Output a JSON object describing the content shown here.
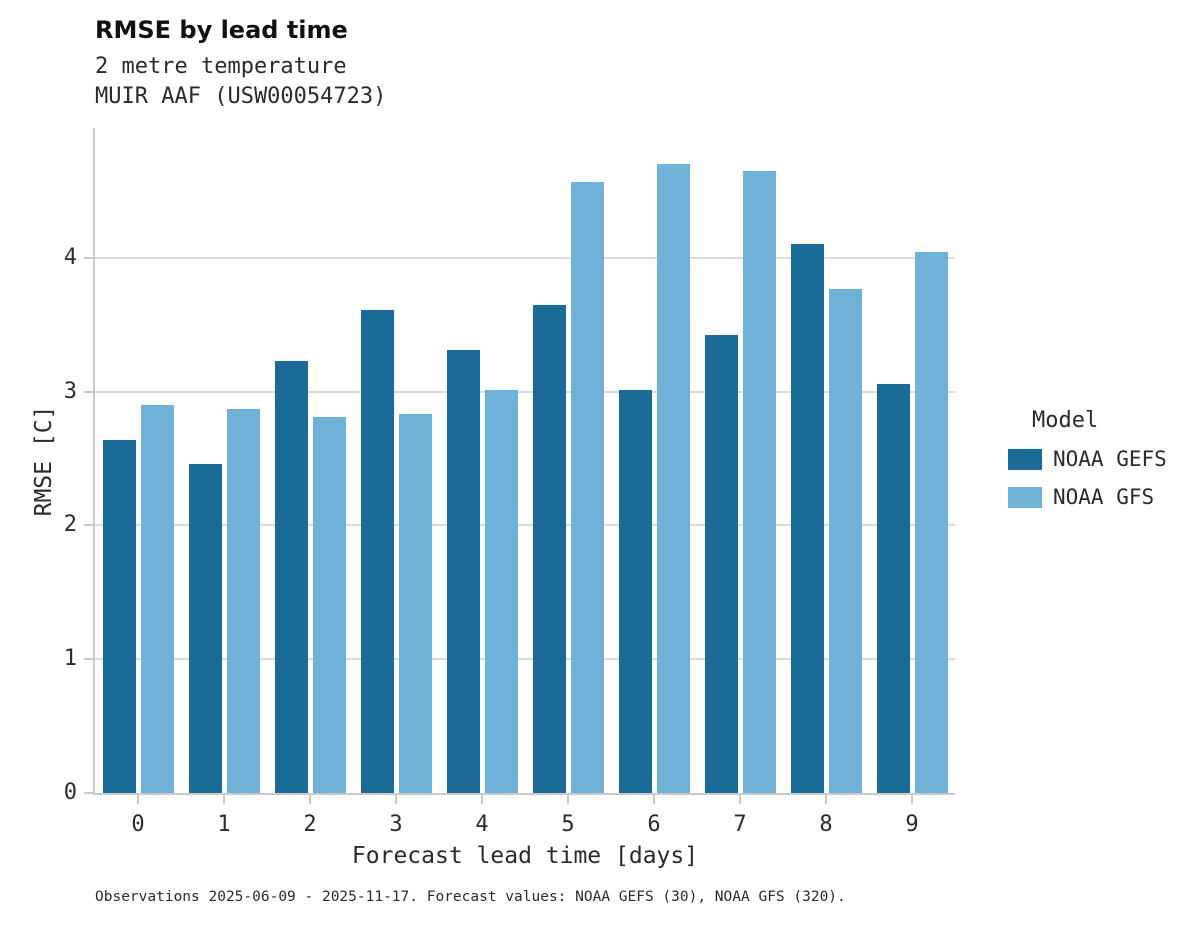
{
  "title": "RMSE by lead time",
  "subtitle_line1": "2 metre temperature",
  "subtitle_line2": "MUIR AAF (USW00054723)",
  "caption": "Observations 2025-06-09 - 2025-11-17. Forecast values: NOAA GEFS (30), NOAA GFS (320).",
  "chart_data": {
    "type": "bar",
    "title": "RMSE by lead time",
    "subtitle": "2 metre temperature — MUIR AAF (USW00054723)",
    "categories": [
      "0",
      "1",
      "2",
      "3",
      "4",
      "5",
      "6",
      "7",
      "8",
      "9"
    ],
    "series": [
      {
        "name": "NOAA GEFS",
        "color": "#1a6b97",
        "values": [
          2.64,
          2.46,
          3.23,
          3.61,
          3.31,
          3.65,
          3.01,
          3.42,
          4.1,
          3.06
        ]
      },
      {
        "name": "NOAA GFS",
        "color": "#70b1d7",
        "values": [
          2.9,
          2.87,
          2.81,
          2.83,
          3.01,
          4.57,
          4.7,
          4.65,
          3.77,
          4.04
        ]
      }
    ],
    "xlabel": "Forecast lead time [days]",
    "ylabel": "RMSE [C]",
    "ylim": [
      0,
      4.97
    ],
    "yticks": [
      0,
      1,
      2,
      3,
      4
    ],
    "grid": "horizontal",
    "legend_title": "Model",
    "legend_position": "right"
  }
}
